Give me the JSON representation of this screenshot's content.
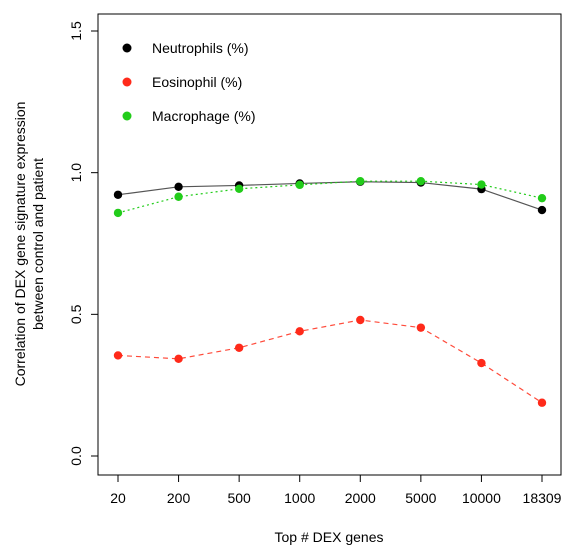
{
  "chart_data": {
    "type": "line",
    "title": "",
    "xlabel": "Top # DEX genes",
    "ylabel_lines": [
      "Correlation of DEX gene signature expression",
      "between control and patient"
    ],
    "categories": [
      "20",
      "200",
      "500",
      "1000",
      "2000",
      "5000",
      "10000",
      "18309"
    ],
    "ylim": [
      0,
      1.5
    ],
    "yticks": [
      0.0,
      0.5,
      1.0,
      1.5
    ],
    "ytick_labels": [
      "0.0",
      "0.5",
      "1.0",
      "1.5"
    ],
    "legend_position": "top-left",
    "grid": false,
    "series": [
      {
        "name": "Neutrophils (%)",
        "color": "#000000",
        "line_color": "#555555",
        "line_style": "solid",
        "values": [
          0.922,
          0.95,
          0.955,
          0.962,
          0.968,
          0.965,
          0.942,
          0.868
        ]
      },
      {
        "name": "Eosinophil (%)",
        "color": "#ff2a1a",
        "line_color": "#ff4a3a",
        "line_style": "dashed",
        "values": [
          0.355,
          0.343,
          0.382,
          0.44,
          0.48,
          0.453,
          0.328,
          0.188
        ]
      },
      {
        "name": "Macrophage (%)",
        "color": "#22cc1a",
        "line_color": "#22cc1a",
        "line_style": "dotted",
        "values": [
          0.858,
          0.915,
          0.943,
          0.957,
          0.97,
          0.97,
          0.958,
          0.91
        ]
      }
    ]
  }
}
